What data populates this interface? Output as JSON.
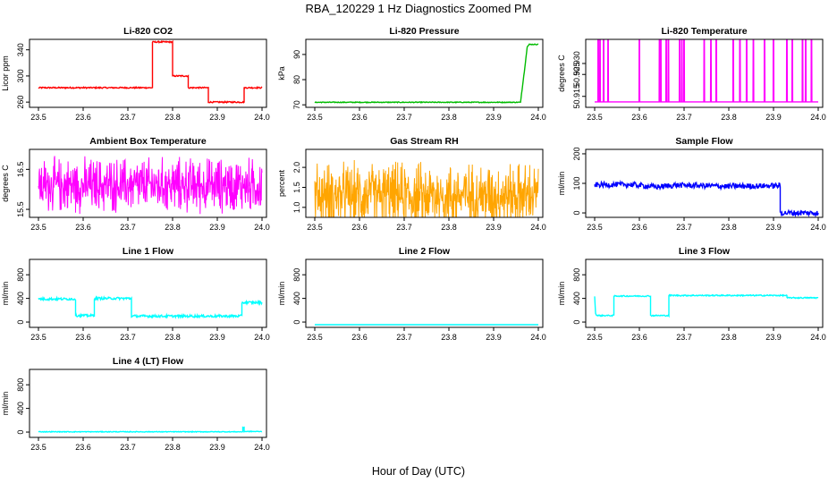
{
  "figure": {
    "title": "RBA_120229  1 Hz Diagnostics Zoomed PM",
    "xlabel": "Hour of Day (UTC)"
  },
  "chart_data": [
    {
      "type": "line",
      "title": "Li-820 CO2",
      "ylabel": "Licor ppm",
      "color": "#ff0000",
      "xlim": [
        23.48,
        24.01
      ],
      "ylim": [
        252,
        356
      ],
      "xticks": [
        "23.5",
        "23.6",
        "23.7",
        "23.8",
        "23.9",
        "24.0"
      ],
      "xtick_values": [
        23.5,
        23.6,
        23.7,
        23.8,
        23.9,
        24.0
      ],
      "yticks": [
        "260",
        "300",
        "340"
      ],
      "ytick_values": [
        260,
        300,
        340
      ],
      "series": [
        {
          "name": "CO2",
          "kind": "step",
          "x": [
            23.5,
            23.755,
            23.755,
            23.8,
            23.8,
            23.835,
            23.835,
            23.88,
            23.88,
            23.96,
            23.96,
            24.0
          ],
          "y": [
            282,
            282,
            352,
            352,
            300,
            300,
            282,
            282,
            260,
            260,
            282,
            282
          ],
          "noise": 1
        }
      ]
    },
    {
      "type": "line",
      "title": "Li-820 Pressure",
      "ylabel": "kPa",
      "color": "#00bb00",
      "xlim": [
        23.48,
        24.01
      ],
      "ylim": [
        69,
        96
      ],
      "xticks": [
        "23.5",
        "23.6",
        "23.7",
        "23.8",
        "23.9",
        "24.0"
      ],
      "xtick_values": [
        23.5,
        23.6,
        23.7,
        23.8,
        23.9,
        24.0
      ],
      "yticks": [
        "70",
        "80",
        "90"
      ],
      "ytick_values": [
        70,
        80,
        90
      ],
      "series": [
        {
          "name": "Pressure",
          "kind": "step",
          "x": [
            23.5,
            23.96,
            23.96,
            23.965,
            23.97,
            23.975,
            23.98,
            24.0
          ],
          "y": [
            71,
            71,
            70.8,
            78,
            85,
            93,
            94,
            94
          ],
          "noise": 0.15
        }
      ]
    },
    {
      "type": "line",
      "title": "Li-820 Temperature",
      "ylabel": "degrees C",
      "color": "#ff00ff",
      "xlim": [
        23.48,
        24.01
      ],
      "ylim": [
        50.91,
        50.941
      ],
      "xticks": [
        "23.5",
        "23.6",
        "23.7",
        "23.8",
        "23.9",
        "24.0"
      ],
      "xtick_values": [
        23.5,
        23.6,
        23.7,
        23.8,
        23.9,
        24.0
      ],
      "yticks": [
        "50.915",
        "50.925",
        "50.930"
      ],
      "ytick_values": [
        50.915,
        50.925,
        50.93
      ],
      "series": [
        {
          "name": "Temperature",
          "kind": "spikes",
          "base": 50.9125,
          "peak": 50.9405,
          "x": [
            23.508,
            23.512,
            23.52,
            23.53,
            23.6,
            23.645,
            23.648,
            23.66,
            23.665,
            23.69,
            23.695,
            23.7,
            23.745,
            23.76,
            23.772,
            23.81,
            23.825,
            23.84,
            23.855,
            23.88,
            23.9,
            23.93,
            23.942,
            23.965,
            23.972,
            23.985
          ]
        }
      ]
    },
    {
      "type": "line",
      "title": "Ambient Box Temperature",
      "ylabel": "degrees C",
      "color": "#ff00ff",
      "xlim": [
        23.48,
        24.01
      ],
      "ylim": [
        15.3,
        17.0
      ],
      "xticks": [
        "23.5",
        "23.6",
        "23.7",
        "23.8",
        "23.9",
        "24.0"
      ],
      "xtick_values": [
        23.5,
        23.6,
        23.7,
        23.8,
        23.9,
        24.0
      ],
      "yticks": [
        "15.5",
        "16.5"
      ],
      "ytick_values": [
        15.5,
        16.5
      ],
      "series": [
        {
          "name": "Box Temperature",
          "kind": "noise",
          "x": [
            23.5,
            24.0
          ],
          "y": [
            16.1,
            16.1
          ],
          "noise": 0.8,
          "n": 650
        }
      ]
    },
    {
      "type": "line",
      "title": "Gas Stream RH",
      "ylabel": "percent",
      "color": "#ffa500",
      "xlim": [
        23.48,
        24.01
      ],
      "ylim": [
        0.75,
        2.45
      ],
      "xticks": [
        "23.5",
        "23.6",
        "23.7",
        "23.8",
        "23.9",
        "24.0"
      ],
      "xtick_values": [
        23.5,
        23.6,
        23.7,
        23.8,
        23.9,
        24.0
      ],
      "yticks": [
        "1.0",
        "1.5",
        "2.0"
      ],
      "ytick_values": [
        1.0,
        1.5,
        2.0
      ],
      "series": [
        {
          "name": "RH",
          "kind": "noise",
          "x": [
            23.5,
            24.0
          ],
          "y": [
            1.3,
            1.3
          ],
          "noise": 0.95,
          "n": 650
        }
      ]
    },
    {
      "type": "line",
      "title": "Sample Flow",
      "ylabel": "ml/min",
      "color": "#0000ff",
      "xlim": [
        23.48,
        24.01
      ],
      "ylim": [
        -15,
        215
      ],
      "xticks": [
        "23.5",
        "23.6",
        "23.7",
        "23.8",
        "23.9",
        "24.0"
      ],
      "xtick_values": [
        23.5,
        23.6,
        23.7,
        23.8,
        23.9,
        24.0
      ],
      "yticks": [
        "0",
        "100",
        "200"
      ],
      "ytick_values": [
        0,
        100,
        200
      ],
      "series": [
        {
          "name": "Sample Flow",
          "kind": "step",
          "x": [
            23.5,
            23.58,
            23.64,
            23.68,
            23.75,
            23.8,
            23.9,
            23.915,
            23.915,
            24.0
          ],
          "y": [
            95,
            96,
            88,
            94,
            92,
            90,
            92,
            92,
            0,
            0
          ],
          "noise": 9
        }
      ]
    },
    {
      "type": "line",
      "title": "Line 1 Flow",
      "ylabel": "ml/min",
      "color": "#00ffff",
      "xlim": [
        23.48,
        24.01
      ],
      "ylim": [
        -90,
        1060
      ],
      "xticks": [
        "23.5",
        "23.6",
        "23.7",
        "23.8",
        "23.9",
        "24.0"
      ],
      "xtick_values": [
        23.5,
        23.6,
        23.7,
        23.8,
        23.9,
        24.0
      ],
      "yticks": [
        "0",
        "400",
        "800"
      ],
      "ytick_values": [
        0,
        400,
        800
      ],
      "series": [
        {
          "name": "Line 1",
          "kind": "step",
          "x": [
            23.5,
            23.583,
            23.583,
            23.625,
            23.625,
            23.708,
            23.708,
            23.955,
            23.955,
            24.0
          ],
          "y": [
            390,
            390,
            110,
            110,
            400,
            400,
            100,
            100,
            330,
            330
          ],
          "noise": 20
        }
      ]
    },
    {
      "type": "line",
      "title": "Line 2 Flow",
      "ylabel": "ml/min",
      "color": "#00ffff",
      "xlim": [
        23.48,
        24.01
      ],
      "ylim": [
        -90,
        1060
      ],
      "xticks": [
        "23.5",
        "23.6",
        "23.7",
        "23.8",
        "23.9",
        "24.0"
      ],
      "xtick_values": [
        23.5,
        23.6,
        23.7,
        23.8,
        23.9,
        24.0
      ],
      "yticks": [
        "0",
        "400",
        "800"
      ],
      "ytick_values": [
        0,
        400,
        800
      ],
      "series": [
        {
          "name": "Line 2",
          "kind": "step",
          "x": [
            23.5,
            24.0
          ],
          "y": [
            -45,
            -45
          ],
          "noise": 0
        }
      ]
    },
    {
      "type": "line",
      "title": "Line 3 Flow",
      "ylabel": "ml/min",
      "color": "#00ffff",
      "xlim": [
        23.48,
        24.01
      ],
      "ylim": [
        -90,
        1060
      ],
      "xticks": [
        "23.5",
        "23.6",
        "23.7",
        "23.8",
        "23.9",
        "24.0"
      ],
      "xtick_values": [
        23.5,
        23.6,
        23.7,
        23.8,
        23.9,
        24.0
      ],
      "yticks": [
        "0",
        "400",
        "800"
      ],
      "ytick_values": [
        0,
        400,
        800
      ],
      "series": [
        {
          "name": "Line 3",
          "kind": "step",
          "x": [
            23.5,
            23.502,
            23.505,
            23.543,
            23.543,
            23.625,
            23.625,
            23.666,
            23.666,
            23.93,
            23.93,
            24.0
          ],
          "y": [
            430,
            150,
            110,
            110,
            440,
            440,
            110,
            110,
            450,
            450,
            410,
            410
          ],
          "noise": 10
        }
      ]
    },
    {
      "type": "line",
      "title": "Line 4 (LT) Flow",
      "ylabel": "ml/min",
      "color": "#00ffff",
      "xlim": [
        23.48,
        24.01
      ],
      "ylim": [
        -90,
        1060
      ],
      "xticks": [
        "23.5",
        "23.6",
        "23.7",
        "23.8",
        "23.9",
        "24.0"
      ],
      "xtick_values": [
        23.5,
        23.6,
        23.7,
        23.8,
        23.9,
        24.0
      ],
      "yticks": [
        "0",
        "400",
        "800"
      ],
      "ytick_values": [
        0,
        400,
        800
      ],
      "series": [
        {
          "name": "Line 4",
          "kind": "step",
          "x": [
            23.5,
            23.957,
            23.957,
            23.96,
            23.96,
            24.0
          ],
          "y": [
            5,
            5,
            80,
            80,
            10,
            10
          ],
          "noise": 6
        }
      ]
    }
  ]
}
